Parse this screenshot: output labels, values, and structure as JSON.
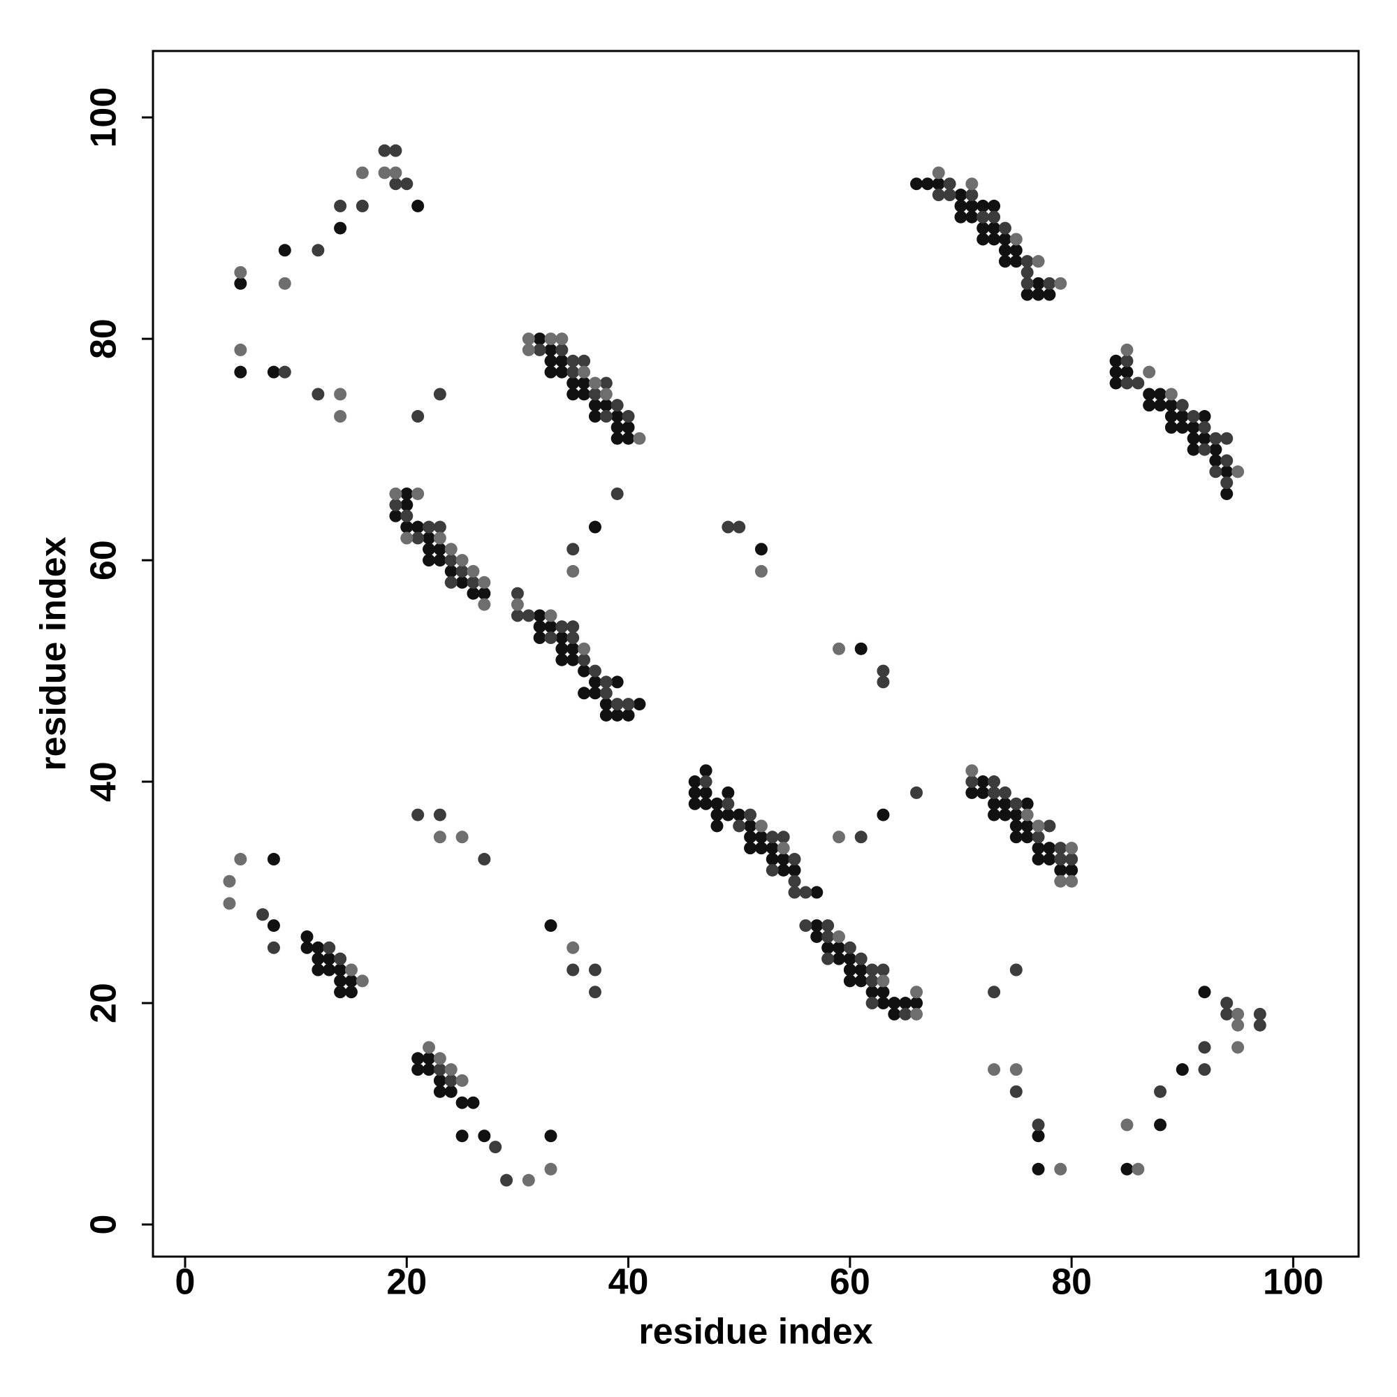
{
  "chart_data": {
    "type": "scatter",
    "xlabel": "residue index",
    "ylabel": "residue index",
    "xlim": [
      -2.9,
      105.9
    ],
    "ylim": [
      -2.9,
      106.0
    ],
    "xticks": [
      0,
      20,
      40,
      60,
      80,
      100
    ],
    "yticks": [
      0,
      20,
      40,
      60,
      80,
      100
    ],
    "series": [
      {
        "color": "#111111",
        "x": [
          5,
          9,
          14,
          21,
          5,
          8,
          32,
          33,
          33,
          34,
          33,
          34,
          35,
          36,
          35,
          36,
          37,
          38,
          37,
          39,
          39,
          40,
          39,
          40,
          20,
          20,
          19,
          20,
          21,
          22,
          22,
          23,
          22,
          23,
          24,
          25,
          26,
          27,
          37,
          52,
          32,
          32,
          33,
          32,
          34,
          34,
          35,
          34,
          35,
          36,
          37,
          39,
          36,
          37,
          38,
          41,
          38,
          39,
          40,
          61,
          47,
          46,
          46,
          47,
          49,
          46,
          47,
          48,
          48,
          49,
          50,
          48,
          51,
          51,
          52,
          51,
          52,
          53,
          53,
          54,
          54,
          55,
          57,
          63,
          72,
          71,
          72,
          73,
          74,
          76,
          73,
          74,
          75,
          75,
          76,
          75,
          76,
          77,
          78,
          77,
          78,
          79,
          80,
          57,
          57,
          58,
          59,
          59,
          60,
          60,
          61,
          60,
          61,
          62,
          63,
          63,
          64,
          65,
          66,
          64,
          8,
          8,
          11,
          11,
          12,
          12,
          13,
          12,
          13,
          14,
          14,
          15,
          14,
          15,
          33,
          21,
          22,
          21,
          22,
          23,
          23,
          24,
          25,
          26,
          25,
          27,
          33,
          77,
          77,
          85,
          88,
          90,
          92,
          66,
          67,
          68,
          70,
          70,
          71,
          72,
          73,
          70,
          71,
          72,
          73,
          72,
          73,
          74,
          74,
          75,
          74,
          75,
          77,
          76,
          77,
          78,
          84,
          84,
          85,
          84,
          87,
          88,
          87,
          88,
          89,
          89,
          90,
          92,
          89,
          90,
          91,
          91,
          92,
          91,
          93,
          93,
          94,
          94
        ],
        "values": [
          85,
          88,
          90,
          92,
          77,
          77,
          80,
          79,
          78,
          78,
          77,
          77,
          76,
          76,
          75,
          75,
          74,
          74,
          73,
          73,
          72,
          72,
          71,
          71,
          66,
          65,
          64,
          63,
          63,
          62,
          61,
          61,
          60,
          60,
          59,
          58,
          57,
          57,
          63,
          61,
          55,
          54,
          54,
          53,
          53,
          52,
          52,
          51,
          51,
          50,
          49,
          49,
          48,
          48,
          47,
          47,
          46,
          46,
          46,
          52,
          41,
          40,
          39,
          39,
          39,
          38,
          38,
          38,
          37,
          37,
          37,
          36,
          36,
          35,
          35,
          34,
          34,
          34,
          33,
          33,
          32,
          32,
          30,
          37,
          40,
          39,
          39,
          38,
          38,
          38,
          37,
          37,
          37,
          36,
          36,
          35,
          35,
          34,
          34,
          33,
          33,
          32,
          32,
          27,
          26,
          25,
          25,
          24,
          24,
          23,
          23,
          22,
          22,
          21,
          21,
          20,
          20,
          20,
          20,
          19,
          33,
          27,
          26,
          25,
          25,
          24,
          24,
          23,
          23,
          23,
          22,
          22,
          21,
          21,
          27,
          15,
          15,
          14,
          14,
          13,
          12,
          12,
          11,
          11,
          8,
          8,
          8,
          8,
          5,
          5,
          9,
          14,
          21,
          94,
          94,
          94,
          93,
          92,
          92,
          92,
          92,
          91,
          91,
          90,
          90,
          89,
          89,
          89,
          88,
          88,
          87,
          87,
          85,
          84,
          84,
          84,
          78,
          77,
          77,
          76,
          75,
          75,
          74,
          74,
          74,
          73,
          73,
          73,
          72,
          72,
          72,
          71,
          71,
          70,
          70,
          69,
          68,
          66
        ]
      },
      {
        "color": "#3c3c3c",
        "x": [
          12,
          14,
          16,
          18,
          19,
          19,
          20,
          9,
          12,
          21,
          23,
          32,
          34,
          35,
          36,
          35,
          38,
          37,
          39,
          38,
          40,
          19,
          20,
          22,
          23,
          21,
          24,
          25,
          24,
          26,
          35,
          39,
          49,
          50,
          30,
          30,
          31,
          34,
          35,
          33,
          35,
          36,
          37,
          38,
          38,
          39,
          40,
          63,
          63,
          47,
          49,
          51,
          50,
          53,
          54,
          55,
          53,
          55,
          55,
          56,
          21,
          23,
          27,
          61,
          66,
          71,
          73,
          73,
          74,
          75,
          78,
          77,
          79,
          79,
          80,
          56,
          58,
          58,
          60,
          58,
          61,
          62,
          63,
          62,
          62,
          65,
          7,
          8,
          13,
          14,
          35,
          37,
          37,
          23,
          24,
          28,
          29,
          73,
          75,
          75,
          77,
          88,
          92,
          92,
          94,
          94,
          97,
          97,
          69,
          68,
          69,
          71,
          72,
          73,
          74,
          76,
          76,
          76,
          78,
          85,
          85,
          86,
          90,
          91,
          92,
          93,
          94,
          92,
          94,
          93,
          94
        ],
        "values": [
          88,
          92,
          92,
          97,
          97,
          94,
          94,
          77,
          75,
          73,
          75,
          79,
          79,
          78,
          78,
          77,
          76,
          75,
          74,
          73,
          73,
          65,
          64,
          63,
          63,
          62,
          60,
          59,
          58,
          58,
          61,
          66,
          63,
          63,
          57,
          55,
          55,
          54,
          54,
          53,
          53,
          51,
          50,
          49,
          48,
          47,
          47,
          50,
          49,
          40,
          38,
          37,
          36,
          35,
          35,
          33,
          32,
          31,
          30,
          30,
          37,
          37,
          33,
          35,
          39,
          40,
          40,
          39,
          39,
          38,
          36,
          35,
          34,
          33,
          33,
          27,
          27,
          26,
          25,
          24,
          24,
          23,
          23,
          22,
          20,
          19,
          28,
          25,
          25,
          24,
          23,
          23,
          21,
          14,
          13,
          7,
          4,
          21,
          23,
          12,
          9,
          12,
          16,
          14,
          20,
          19,
          19,
          18,
          94,
          93,
          93,
          93,
          91,
          91,
          90,
          87,
          86,
          85,
          85,
          78,
          76,
          76,
          74,
          73,
          72,
          71,
          71,
          70,
          69,
          68,
          67
        ]
      },
      {
        "color": "#6e6e6e",
        "x": [
          5,
          9,
          16,
          18,
          19,
          5,
          14,
          14,
          31,
          33,
          34,
          31,
          36,
          37,
          38,
          41,
          19,
          21,
          20,
          23,
          24,
          25,
          26,
          27,
          27,
          35,
          52,
          30,
          33,
          36,
          59,
          52,
          54,
          23,
          25,
          59,
          71,
          76,
          77,
          80,
          79,
          80,
          59,
          63,
          66,
          66,
          4,
          4,
          5,
          15,
          16,
          35,
          22,
          23,
          24,
          25,
          31,
          33,
          73,
          75,
          79,
          85,
          86,
          95,
          95,
          95,
          68,
          71,
          75,
          77,
          79,
          85,
          87,
          89,
          95
        ],
        "values": [
          86,
          85,
          95,
          95,
          95,
          79,
          75,
          73,
          80,
          80,
          80,
          79,
          77,
          76,
          75,
          71,
          66,
          66,
          62,
          62,
          61,
          60,
          59,
          58,
          56,
          59,
          59,
          56,
          55,
          52,
          52,
          36,
          34,
          35,
          35,
          35,
          41,
          37,
          36,
          34,
          31,
          31,
          26,
          22,
          21,
          19,
          31,
          29,
          33,
          23,
          22,
          25,
          16,
          15,
          14,
          13,
          4,
          5,
          14,
          14,
          5,
          9,
          5,
          19,
          18,
          16,
          95,
          94,
          89,
          87,
          85,
          79,
          77,
          75,
          68
        ]
      }
    ]
  }
}
